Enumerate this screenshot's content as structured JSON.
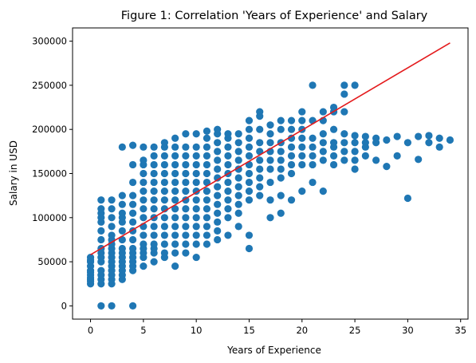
{
  "chart_data": {
    "type": "scatter",
    "title": "Figure 1: Correlation 'Years of Experience' and Salary",
    "xlabel": "Years of Experience",
    "ylabel": "Salary in USD",
    "xlim": [
      -1.7,
      35.7
    ],
    "ylim": [
      -15000,
      315000
    ],
    "xticks": [
      0,
      5,
      10,
      15,
      20,
      25,
      30,
      35
    ],
    "yticks": [
      0,
      50000,
      100000,
      150000,
      200000,
      250000,
      300000
    ],
    "grid": false,
    "legend": "none",
    "marker_color": "#1f77b4",
    "trend_line": {
      "color": "#e41a1c",
      "x": [
        0,
        34
      ],
      "y": [
        58000,
        298000
      ]
    },
    "series": [
      {
        "x": [
          0,
          0,
          0,
          0,
          0,
          0,
          0,
          0,
          0,
          0,
          0,
          1,
          1,
          1,
          1,
          1,
          1,
          1,
          1,
          1,
          1,
          1,
          1,
          1,
          1,
          1,
          1,
          2,
          2,
          2,
          2,
          2,
          2,
          2,
          2,
          2,
          2,
          2,
          2,
          2,
          2,
          2,
          2,
          2,
          3,
          3,
          3,
          3,
          3,
          3,
          3,
          3,
          3,
          3,
          3,
          3,
          3,
          3,
          3,
          3,
          4,
          4,
          4,
          4,
          4,
          4,
          4,
          4,
          4,
          4,
          4,
          4,
          4,
          4,
          4,
          4,
          5,
          5,
          5,
          5,
          5,
          5,
          5,
          5,
          5,
          5,
          5,
          5,
          5,
          5,
          5,
          5,
          6,
          6,
          6,
          6,
          6,
          6,
          6,
          6,
          6,
          6,
          6,
          6,
          6,
          6,
          6,
          7,
          7,
          7,
          7,
          7,
          7,
          7,
          7,
          7,
          7,
          7,
          7,
          7,
          7,
          7,
          8,
          8,
          8,
          8,
          8,
          8,
          8,
          8,
          8,
          8,
          8,
          8,
          8,
          8,
          8,
          9,
          9,
          9,
          9,
          9,
          9,
          9,
          9,
          9,
          9,
          9,
          9,
          9,
          9,
          10,
          10,
          10,
          10,
          10,
          10,
          10,
          10,
          10,
          10,
          10,
          10,
          10,
          10,
          11,
          11,
          11,
          11,
          11,
          11,
          11,
          11,
          11,
          11,
          11,
          11,
          11,
          11,
          12,
          12,
          12,
          12,
          12,
          12,
          12,
          12,
          12,
          12,
          12,
          12,
          12,
          12,
          13,
          13,
          13,
          13,
          13,
          13,
          13,
          13,
          13,
          13,
          13,
          13,
          14,
          14,
          14,
          14,
          14,
          14,
          14,
          14,
          14,
          14,
          14,
          15,
          15,
          15,
          15,
          15,
          15,
          15,
          15,
          15,
          15,
          15,
          15,
          16,
          16,
          16,
          16,
          16,
          16,
          16,
          16,
          16,
          16,
          17,
          17,
          17,
          17,
          17,
          17,
          17,
          17,
          17,
          18,
          18,
          18,
          18,
          18,
          18,
          18,
          18,
          18,
          19,
          19,
          19,
          19,
          19,
          19,
          19,
          19,
          20,
          20,
          20,
          20,
          20,
          20,
          20,
          20,
          21,
          21,
          21,
          21,
          21,
          21,
          21,
          22,
          22,
          22,
          22,
          22,
          22,
          22,
          23,
          23,
          23,
          23,
          23,
          23,
          23,
          24,
          24,
          24,
          24,
          24,
          24,
          24,
          25,
          25,
          25,
          25,
          25,
          25,
          26,
          26,
          26,
          26,
          27,
          27,
          27,
          28,
          28,
          29,
          29,
          30,
          30,
          31,
          31,
          32,
          32,
          33,
          33,
          34
        ],
        "y": [
          25000,
          30000,
          35000,
          40000,
          45000,
          50000,
          55000,
          28000,
          32000,
          38000,
          52000,
          0,
          25000,
          30000,
          35000,
          40000,
          50000,
          55000,
          60000,
          65000,
          75000,
          85000,
          95000,
          100000,
          105000,
          110000,
          120000,
          0,
          25000,
          30000,
          35000,
          40000,
          45000,
          50000,
          55000,
          60000,
          65000,
          70000,
          75000,
          80000,
          90000,
          100000,
          110000,
          120000,
          30000,
          35000,
          40000,
          45000,
          50000,
          55000,
          60000,
          65000,
          75000,
          85000,
          95000,
          100000,
          105000,
          115000,
          125000,
          180000,
          0,
          40000,
          45000,
          50000,
          55000,
          60000,
          65000,
          75000,
          85000,
          95000,
          105000,
          115000,
          125000,
          140000,
          160000,
          182000,
          45000,
          55000,
          60000,
          65000,
          70000,
          80000,
          90000,
          100000,
          110000,
          120000,
          130000,
          140000,
          150000,
          160000,
          165000,
          180000,
          50000,
          60000,
          65000,
          70000,
          80000,
          90000,
          100000,
          110000,
          120000,
          130000,
          140000,
          150000,
          160000,
          170000,
          180000,
          55000,
          60000,
          70000,
          80000,
          90000,
          100000,
          110000,
          120000,
          130000,
          140000,
          150000,
          160000,
          170000,
          180000,
          185000,
          45000,
          60000,
          70000,
          80000,
          90000,
          100000,
          110000,
          120000,
          130000,
          140000,
          150000,
          160000,
          170000,
          180000,
          190000,
          60000,
          70000,
          80000,
          90000,
          100000,
          110000,
          120000,
          130000,
          140000,
          150000,
          160000,
          170000,
          180000,
          195000,
          55000,
          70000,
          80000,
          90000,
          100000,
          110000,
          120000,
          130000,
          140000,
          150000,
          160000,
          170000,
          180000,
          195000,
          70000,
          80000,
          90000,
          100000,
          110000,
          120000,
          130000,
          140000,
          150000,
          160000,
          170000,
          180000,
          190000,
          198000,
          75000,
          85000,
          95000,
          105000,
          115000,
          125000,
          135000,
          145000,
          155000,
          165000,
          175000,
          185000,
          195000,
          200000,
          80000,
          100000,
          110000,
          120000,
          130000,
          140000,
          150000,
          160000,
          170000,
          180000,
          190000,
          195000,
          90000,
          105000,
          115000,
          125000,
          135000,
          145000,
          155000,
          165000,
          175000,
          185000,
          195000,
          65000,
          80000,
          120000,
          130000,
          140000,
          150000,
          160000,
          170000,
          180000,
          190000,
          200000,
          210000,
          125000,
          135000,
          145000,
          155000,
          165000,
          175000,
          185000,
          200000,
          215000,
          220000,
          100000,
          120000,
          140000,
          155000,
          165000,
          175000,
          185000,
          195000,
          205000,
          105000,
          125000,
          145000,
          155000,
          165000,
          175000,
          185000,
          200000,
          210000,
          120000,
          150000,
          160000,
          170000,
          180000,
          190000,
          200000,
          210000,
          130000,
          160000,
          170000,
          180000,
          190000,
          200000,
          210000,
          220000,
          140000,
          160000,
          170000,
          180000,
          190000,
          210000,
          250000,
          130000,
          165000,
          175000,
          185000,
          195000,
          210000,
          220000,
          160000,
          170000,
          180000,
          185000,
          200000,
          220000,
          225000,
          165000,
          175000,
          185000,
          195000,
          220000,
          240000,
          250000,
          155000,
          165000,
          175000,
          185000,
          193000,
          250000,
          170000,
          180000,
          185000,
          192000,
          165000,
          185000,
          190000,
          158000,
          188000,
          170000,
          192000,
          122000,
          185000,
          166000,
          192000,
          185000,
          193000,
          180000,
          190000,
          188000
        ]
      }
    ]
  }
}
